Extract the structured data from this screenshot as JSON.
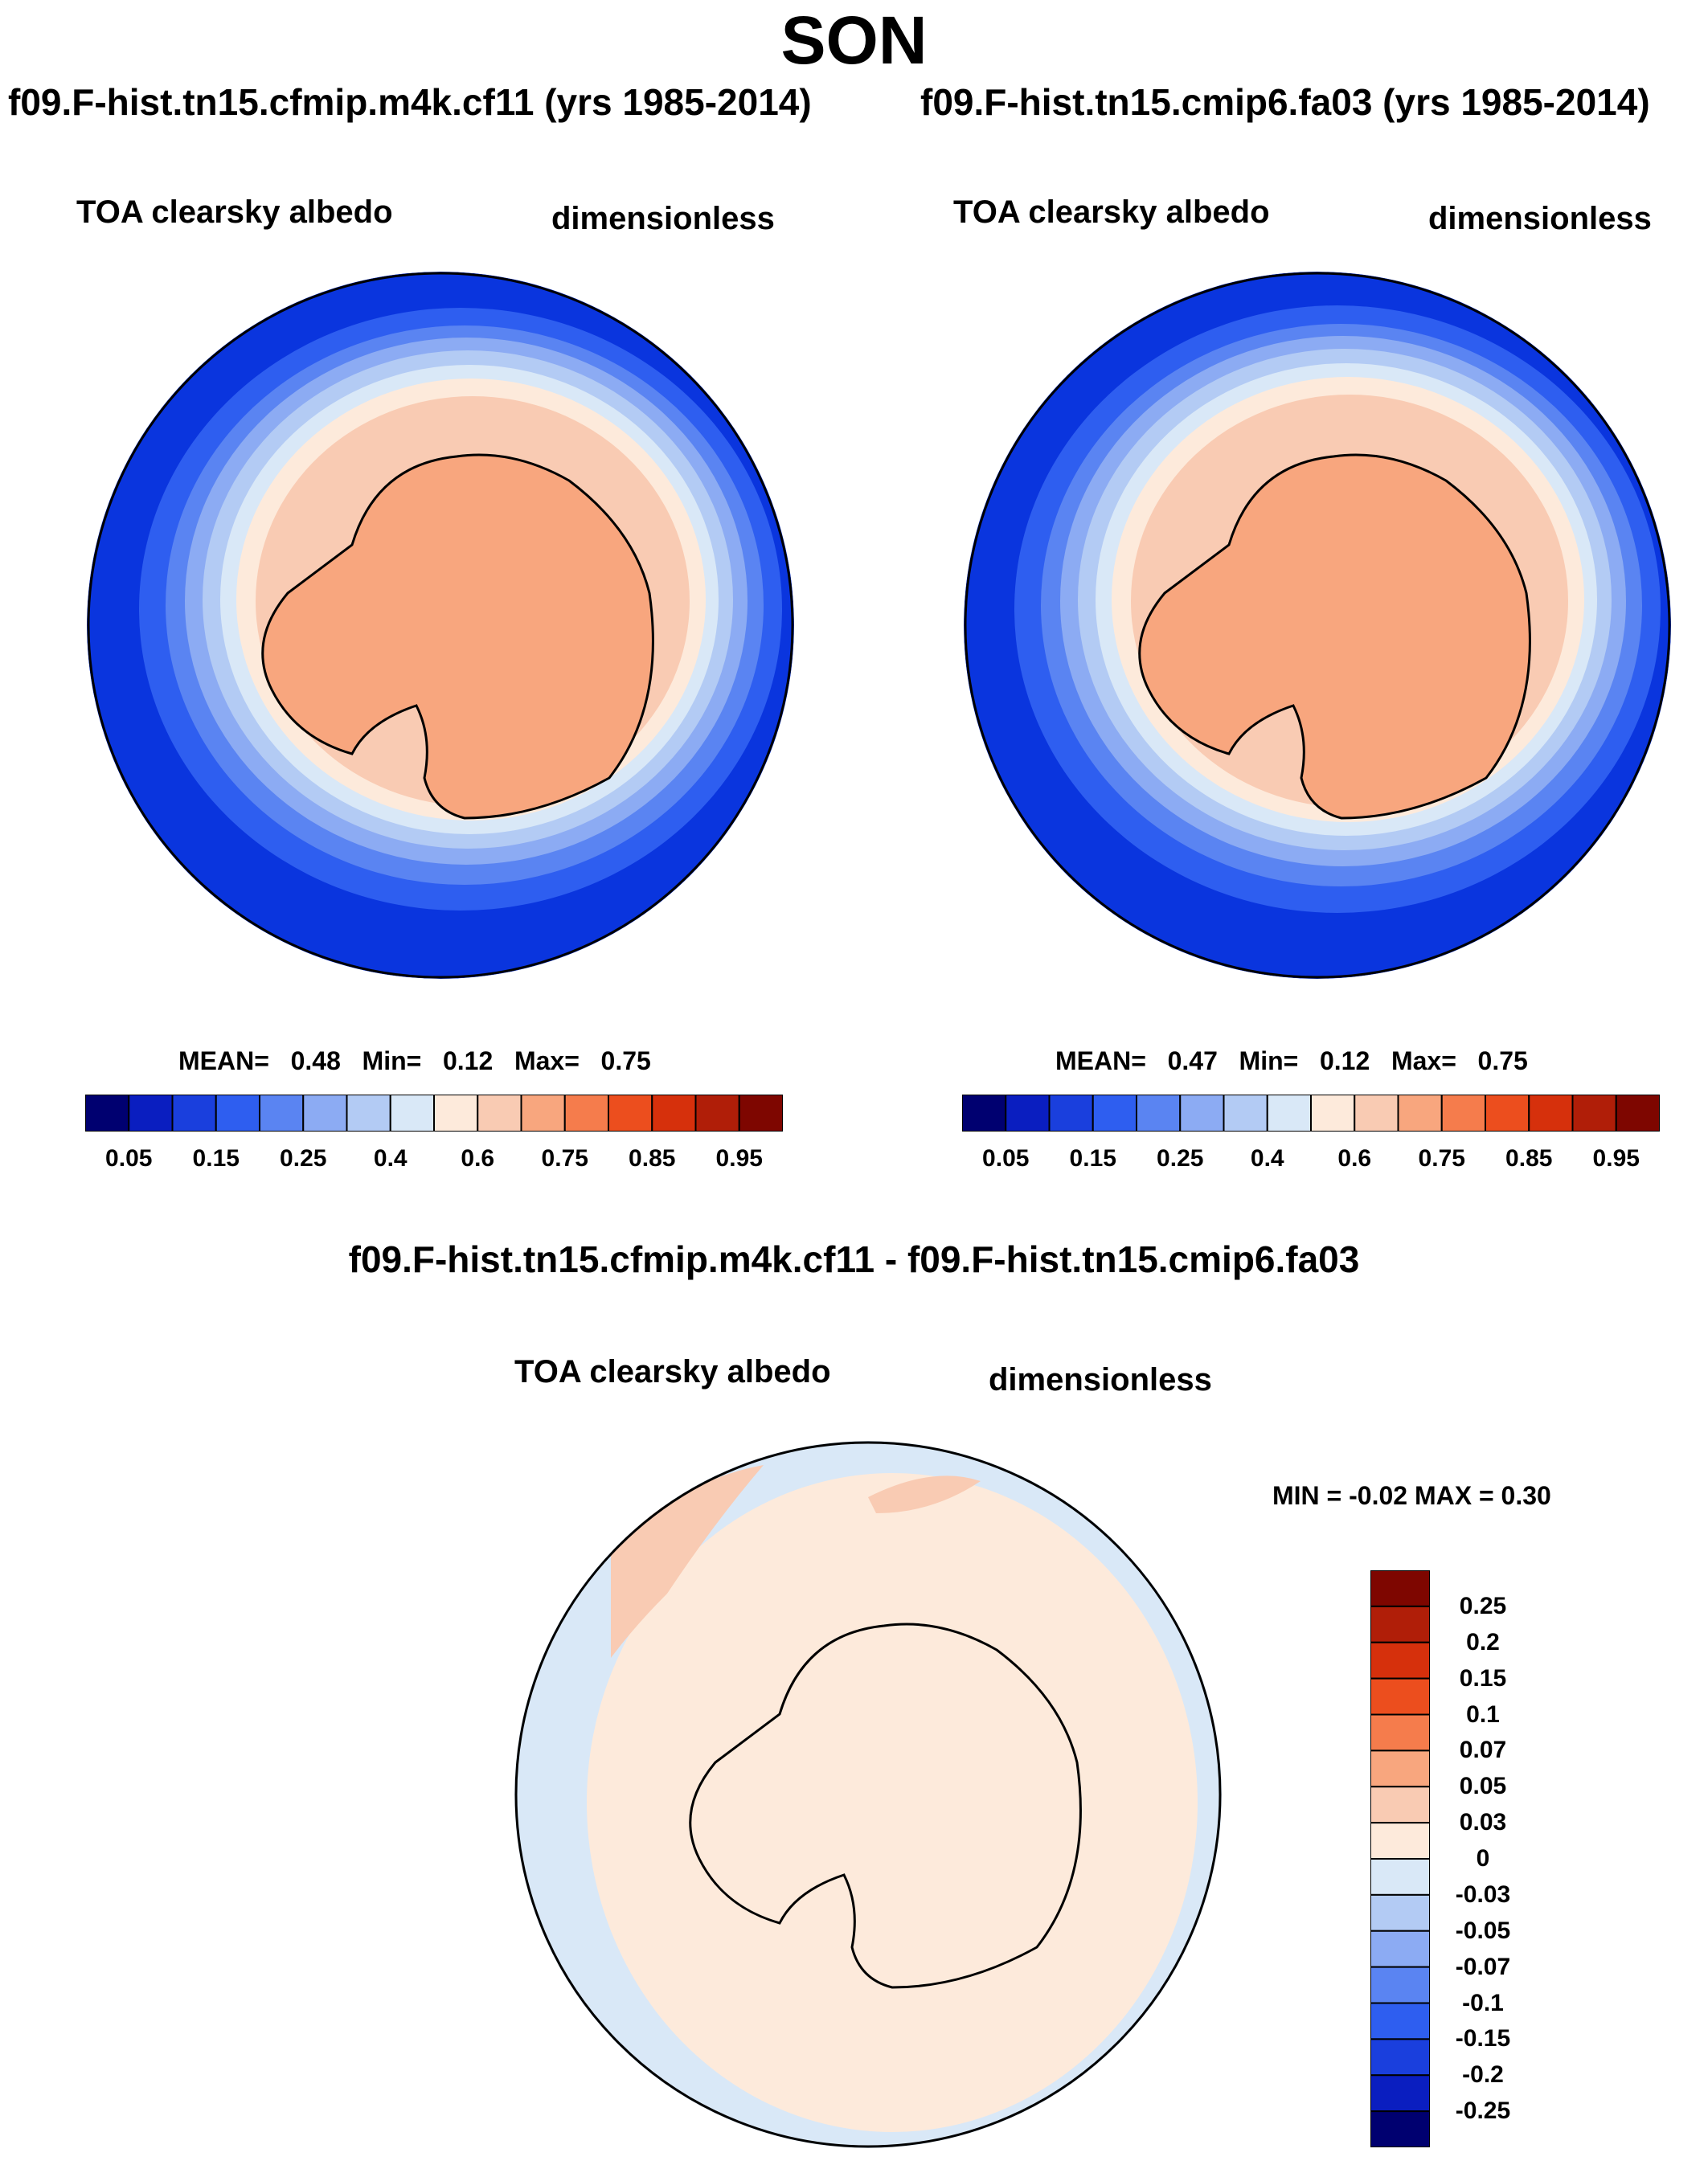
{
  "season": "SON",
  "panels": [
    {
      "case": "f09.F-hist.tn15.cfmip.m4k.cf11 (yrs 1985-2014)",
      "variable": "TOA clearsky albedo",
      "units": "dimensionless",
      "stats": {
        "mean_label": "MEAN=",
        "mean": "0.48",
        "min_label": "Min=",
        "min": "0.12",
        "max_label": "Max=",
        "max": "0.75"
      }
    },
    {
      "case": "f09.F-hist.tn15.cmip6.fa03 (yrs 1985-2014)",
      "variable": "TOA clearsky albedo",
      "units": "dimensionless",
      "stats": {
        "mean_label": "MEAN=",
        "mean": "0.47",
        "min_label": "Min=",
        "min": "0.12",
        "max_label": "Max=",
        "max": "0.75"
      }
    }
  ],
  "colorbar": {
    "colors": [
      "#000070",
      "#0a1ec0",
      "#1a3fdd",
      "#2e5ef0",
      "#5a84f2",
      "#8cabf3",
      "#b3cbf4",
      "#d9e8f7",
      "#fdeadb",
      "#f9cbb3",
      "#f8a67e",
      "#f57c4c",
      "#ec4e1e",
      "#d6300c",
      "#b01e08",
      "#7e0600"
    ],
    "labels": [
      "0.05",
      "0.15",
      "0.25",
      "0.4",
      "0.6",
      "0.75",
      "0.85",
      "0.95"
    ]
  },
  "diff": {
    "title": "f09.F-hist.tn15.cfmip.m4k.cf11 - f09.F-hist.tn15.cmip6.fa03",
    "variable": "TOA clearsky albedo",
    "units": "dimensionless",
    "minmax": "MIN =  -0.02 MAX =   0.30",
    "colorbar": {
      "colors": [
        "#7e0600",
        "#b01e08",
        "#d6300c",
        "#ec4e1e",
        "#f57c4c",
        "#f8a67e",
        "#f9cbb3",
        "#fdeadb",
        "#d9e8f7",
        "#b3cbf4",
        "#8cabf3",
        "#5a84f2",
        "#2e5ef0",
        "#1a3fdd",
        "#0a1ec0",
        "#000070"
      ],
      "labels": [
        "0.25",
        "0.2",
        "0.15",
        "0.1",
        "0.07",
        "0.05",
        "0.03",
        "0",
        "-0.03",
        "-0.05",
        "-0.07",
        "-0.1",
        "-0.15",
        "-0.2",
        "-0.25"
      ]
    }
  }
}
